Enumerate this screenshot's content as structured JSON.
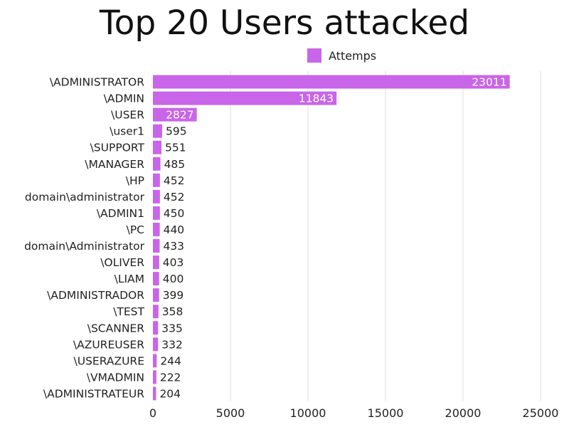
{
  "chart_data": {
    "type": "bar",
    "orientation": "horizontal",
    "title": "Top 20 Users attacked",
    "xlabel": "",
    "ylabel": "",
    "xlim": [
      0,
      25000
    ],
    "xticks": [
      0,
      5000,
      10000,
      15000,
      20000,
      25000
    ],
    "grid": "vertical",
    "legend_position": "top-right",
    "bar_color": "#c965e8",
    "categories": [
      "\\ADMINISTRATOR",
      "\\ADMIN",
      "\\USER",
      "\\user1",
      "\\SUPPORT",
      "\\MANAGER",
      "\\HP",
      "domain\\administrator",
      "\\ADMIN1",
      "\\PC",
      "domain\\Administrator",
      "\\OLIVER",
      "\\LIAM",
      "\\ADMINISTRADOR",
      "\\TEST",
      "\\SCANNER",
      "\\AZUREUSER",
      "\\USERAZURE",
      "\\VMADMIN",
      "\\ADMINISTRATEUR"
    ],
    "series": [
      {
        "name": "Attemps",
        "values": [
          23011,
          11843,
          2827,
          595,
          551,
          485,
          452,
          452,
          450,
          440,
          433,
          403,
          400,
          399,
          358,
          335,
          332,
          244,
          222,
          204
        ]
      }
    ]
  }
}
